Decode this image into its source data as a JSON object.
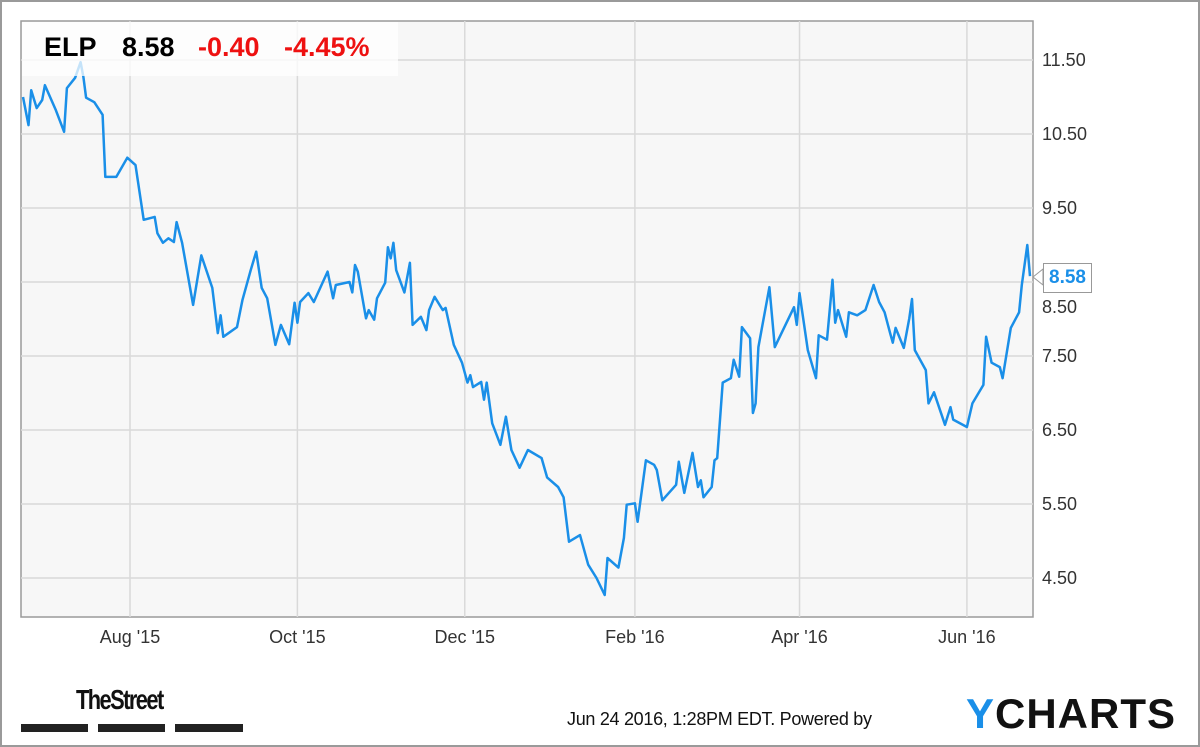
{
  "header": {
    "ticker": "ELP",
    "price": "8.58",
    "change": "-0.40",
    "change_pct": "-4.45%"
  },
  "last_value_label": "8.58",
  "footer": {
    "brand_left": "TheStreet",
    "timestamp": "Jun 24 2016, 1:28PM EDT. Powered by",
    "brand_right_y": "Y",
    "brand_right_rest": "CHARTS"
  },
  "colors": {
    "line": "#1a8fe8",
    "negative": "#ee1111",
    "plot_bg": "#f7f7f7",
    "grid": "#d9d9d9"
  },
  "chart_data": {
    "type": "line",
    "title": "",
    "xlabel": "",
    "ylabel": "",
    "ylim": [
      4.0,
      12.0
    ],
    "grid": true,
    "y_axis_position": "right",
    "yticks": [
      11.5,
      10.5,
      9.5,
      8.5,
      7.5,
      6.5,
      5.5,
      4.5
    ],
    "ytick_labels": [
      "11.50",
      "10.50",
      "9.50",
      "8.50",
      "7.50",
      "6.50",
      "5.50",
      "4.50"
    ],
    "xlim": [
      "2015-06-22",
      "2016-06-24"
    ],
    "xticks": [
      "2015-08-01",
      "2015-10-01",
      "2015-12-01",
      "2016-02-01",
      "2016-04-01",
      "2016-06-01"
    ],
    "xtick_labels": [
      "Aug '15",
      "Oct '15",
      "Dec '15",
      "Feb '16",
      "Apr '16",
      "Jun '16"
    ],
    "series": [
      {
        "x": [
          "2015-06-23",
          "2015-06-25",
          "2015-06-26",
          "2015-06-28",
          "2015-06-30",
          "2015-07-01",
          "2015-07-05",
          "2015-07-08",
          "2015-07-09",
          "2015-07-12",
          "2015-07-14",
          "2015-07-15",
          "2015-07-16",
          "2015-07-19",
          "2015-07-22",
          "2015-07-23",
          "2015-07-27",
          "2015-07-31",
          "2015-08-03",
          "2015-08-06",
          "2015-08-10",
          "2015-08-11",
          "2015-08-13",
          "2015-08-15",
          "2015-08-17",
          "2015-08-18",
          "2015-08-20",
          "2015-08-24",
          "2015-08-27",
          "2015-08-31",
          "2015-09-02",
          "2015-09-03",
          "2015-09-04",
          "2015-09-09",
          "2015-09-11",
          "2015-09-14",
          "2015-09-16",
          "2015-09-18",
          "2015-09-20",
          "2015-09-23",
          "2015-09-25",
          "2015-09-28",
          "2015-09-30",
          "2015-10-01",
          "2015-10-02",
          "2015-10-05",
          "2015-10-07",
          "2015-10-12",
          "2015-10-14",
          "2015-10-15",
          "2015-10-20",
          "2015-10-21",
          "2015-10-22",
          "2015-10-23",
          "2015-10-26",
          "2015-10-27",
          "2015-10-29",
          "2015-10-30",
          "2015-11-02",
          "2015-11-03",
          "2015-11-04",
          "2015-11-05",
          "2015-11-06",
          "2015-11-09",
          "2015-11-11",
          "2015-11-12",
          "2015-11-15",
          "2015-11-17",
          "2015-11-18",
          "2015-11-20",
          "2015-11-23",
          "2015-11-24",
          "2015-11-27",
          "2015-11-30",
          "2015-12-02",
          "2015-12-03",
          "2015-12-04",
          "2015-12-07",
          "2015-12-08",
          "2015-12-09",
          "2015-12-11",
          "2015-12-14",
          "2015-12-16",
          "2015-12-18",
          "2015-12-21",
          "2015-12-24",
          "2015-12-29",
          "2015-12-31",
          "2016-01-04",
          "2016-01-06",
          "2016-01-08",
          "2016-01-12",
          "2016-01-15",
          "2016-01-18",
          "2016-01-21",
          "2016-01-22",
          "2016-01-26",
          "2016-01-28",
          "2016-01-29",
          "2016-02-01",
          "2016-02-02",
          "2016-02-05",
          "2016-02-08",
          "2016-02-09",
          "2016-02-11",
          "2016-02-16",
          "2016-02-17",
          "2016-02-19",
          "2016-02-22",
          "2016-02-24",
          "2016-02-25",
          "2016-02-26",
          "2016-02-29",
          "2016-03-01",
          "2016-03-02",
          "2016-03-04",
          "2016-03-07",
          "2016-03-08",
          "2016-03-10",
          "2016-03-11",
          "2016-03-14",
          "2016-03-15",
          "2016-03-16",
          "2016-03-17",
          "2016-03-21",
          "2016-03-23",
          "2016-03-30",
          "2016-03-31",
          "2016-04-01",
          "2016-04-04",
          "2016-04-07",
          "2016-04-08",
          "2016-04-11",
          "2016-04-13",
          "2016-04-14",
          "2016-04-15",
          "2016-04-18",
          "2016-04-19",
          "2016-04-22",
          "2016-04-25",
          "2016-04-28",
          "2016-04-30",
          "2016-05-02",
          "2016-05-04",
          "2016-05-05",
          "2016-05-06",
          "2016-05-09",
          "2016-05-11",
          "2016-05-12",
          "2016-05-13",
          "2016-05-17",
          "2016-05-18",
          "2016-05-20",
          "2016-05-24",
          "2016-05-26",
          "2016-05-27",
          "2016-06-01",
          "2016-06-03",
          "2016-06-07",
          "2016-06-08",
          "2016-06-10",
          "2016-06-13",
          "2016-06-14",
          "2016-06-17",
          "2016-06-20",
          "2016-06-21",
          "2016-06-23",
          "2016-06-24"
        ],
        "values": [
          11.0,
          10.62,
          11.09,
          10.85,
          10.96,
          11.16,
          10.82,
          10.53,
          11.12,
          11.26,
          11.47,
          11.27,
          10.99,
          10.93,
          10.76,
          9.92,
          9.92,
          10.18,
          10.08,
          9.34,
          9.38,
          9.16,
          9.03,
          9.09,
          9.04,
          9.31,
          9.03,
          8.19,
          8.86,
          8.42,
          7.81,
          8.05,
          7.76,
          7.89,
          8.26,
          8.66,
          8.91,
          8.42,
          8.28,
          7.65,
          7.92,
          7.66,
          8.22,
          7.95,
          8.23,
          8.35,
          8.23,
          8.64,
          8.28,
          8.46,
          8.5,
          8.36,
          8.73,
          8.64,
          8.01,
          8.12,
          7.99,
          8.28,
          8.49,
          8.97,
          8.82,
          9.03,
          8.66,
          8.36,
          8.76,
          7.92,
          8.03,
          7.85,
          8.12,
          8.3,
          8.12,
          8.15,
          7.65,
          7.41,
          7.14,
          7.24,
          7.08,
          7.15,
          6.91,
          7.14,
          6.59,
          6.3,
          6.68,
          6.23,
          5.99,
          6.23,
          6.12,
          5.86,
          5.73,
          5.59,
          4.99,
          5.08,
          4.68,
          4.5,
          4.27,
          4.77,
          4.64,
          5.04,
          5.49,
          5.51,
          5.26,
          6.09,
          6.03,
          5.96,
          5.55,
          5.76,
          6.07,
          5.65,
          6.19,
          5.73,
          5.82,
          5.59,
          5.73,
          6.09,
          6.12,
          7.14,
          7.2,
          7.45,
          7.22,
          7.89,
          7.74,
          6.73,
          6.86,
          7.62,
          8.43,
          7.62,
          8.16,
          7.92,
          8.35,
          7.58,
          7.2,
          7.78,
          7.72,
          8.53,
          7.95,
          8.12,
          7.76,
          8.09,
          8.05,
          8.12,
          8.46,
          8.23,
          8.09,
          7.81,
          7.68,
          7.88,
          7.61,
          8.01,
          8.27,
          7.58,
          7.31,
          6.86,
          7.01,
          6.57,
          6.81,
          6.64,
          6.54,
          6.86,
          7.11,
          7.76,
          7.41,
          7.35,
          7.2,
          7.88,
          8.09,
          8.46,
          9.0,
          8.58
        ]
      }
    ]
  }
}
